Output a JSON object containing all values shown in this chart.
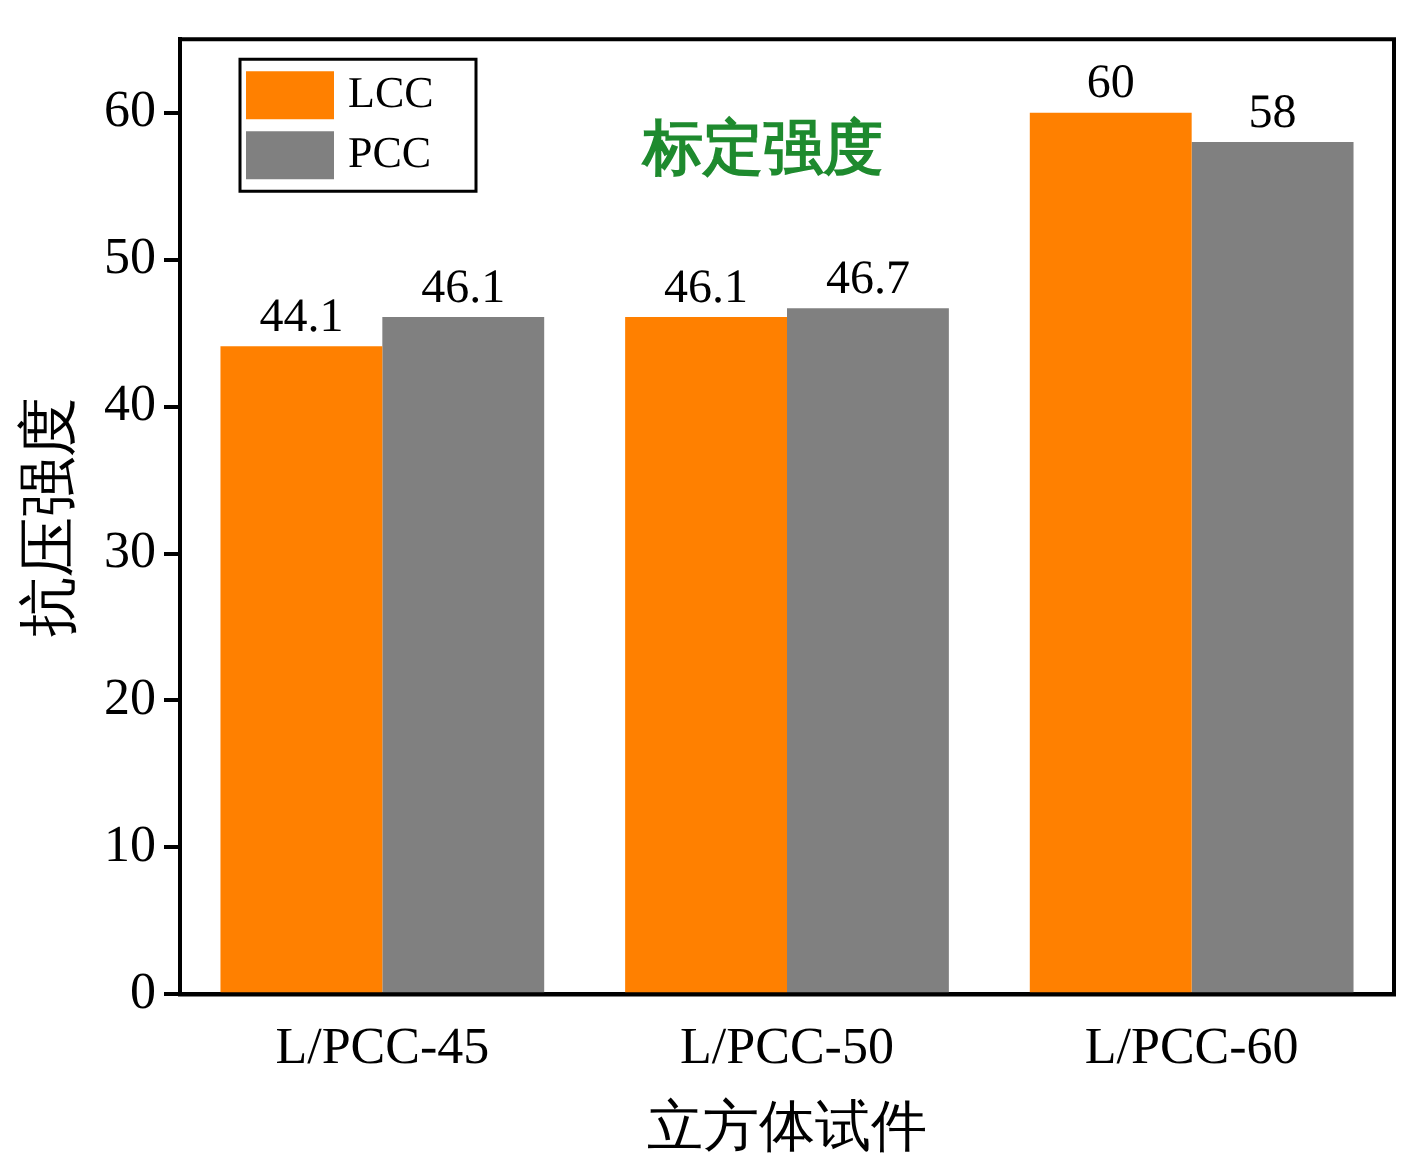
{
  "chart_data": {
    "type": "bar",
    "title": "标定强度",
    "xlabel": "立方体试件",
    "ylabel": "抗压强度",
    "categories": [
      "L/PCC-45",
      "L/PCC-50",
      "L/PCC-60"
    ],
    "series": [
      {
        "name": "LCC",
        "color": "#ff8000",
        "values": [
          44.1,
          46.1,
          60
        ]
      },
      {
        "name": "PCC",
        "color": "#808080",
        "values": [
          46.1,
          46.7,
          58
        ]
      }
    ],
    "ylim": [
      0,
      65
    ],
    "yticks": [
      0,
      10,
      20,
      30,
      40,
      50,
      60
    ],
    "grid": false,
    "legend": "top left",
    "data_labels": true
  }
}
